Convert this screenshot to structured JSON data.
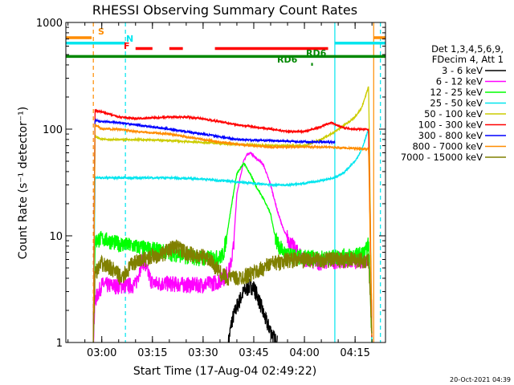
{
  "chart_data": {
    "type": "line",
    "title": "RHESSI Observing Summary Count Rates",
    "xlabel": "Start Time (17-Aug-04 02:49:22)",
    "ylabel": "Count Rate (s⁻¹ detector⁻¹)",
    "ylog": true,
    "ylim": [
      1,
      1000
    ],
    "xlim": [
      "02:49:22",
      "04:24:00"
    ],
    "x_ticks": [
      "03:00",
      "03:15",
      "03:30",
      "03:45",
      "04:00",
      "04:15"
    ],
    "y_ticks": [
      "1",
      "10",
      "100",
      "1000"
    ],
    "legend_header": [
      "Det 1,3,4,5,6,9,",
      "FDecim 4, Att 1"
    ],
    "legend_placement": "right",
    "footer": "20-Oct-2021 04:39",
    "grid": false,
    "flags": [
      {
        "label": "S",
        "color": "#ff8c00",
        "level": 720,
        "spans": [
          [
            "02:49:22",
            "02:57:00"
          ],
          [
            "04:20:30",
            "04:24:00"
          ]
        ]
      },
      {
        "label": "N",
        "color": "#00e5ee",
        "level": 640,
        "spans": [
          [
            "02:49:22",
            "03:07:00"
          ],
          [
            "04:09:00",
            "04:24:00"
          ]
        ]
      },
      {
        "label": "F",
        "color": "#ff0000",
        "level": 570,
        "spans": [
          [
            "03:10:00",
            "03:15:00"
          ],
          [
            "03:20:00",
            "03:24:00"
          ],
          [
            "03:33:30",
            "04:07:00"
          ]
        ]
      },
      {
        "label": "RD6",
        "color": "#008800",
        "level": 480,
        "spans": [
          [
            "02:49:22",
            "04:24:00"
          ]
        ]
      },
      {
        "label": "RD6",
        "color": "#008800",
        "level": 405,
        "spans": [
          [
            "04:02:00",
            "04:02:30"
          ]
        ]
      },
      {
        "label": "RD6",
        "color": "#008800",
        "level": 490,
        "spans": []
      }
    ],
    "vlines": [
      {
        "time": "02:57:30",
        "color": "#ff8c00",
        "style": "dashed"
      },
      {
        "time": "03:07:00",
        "color": "#00e5ee",
        "style": "dashed"
      },
      {
        "time": "04:09:00",
        "color": "#00e5ee",
        "style": "solid"
      },
      {
        "time": "04:20:30",
        "color": "#ff8c00",
        "style": "solid"
      },
      {
        "time": "04:22:30",
        "color": "#00e5ee",
        "style": "dashed"
      }
    ],
    "series": [
      {
        "name": "3 - 6 keV",
        "color": "#000000",
        "x": [
          "03:37:30",
          "03:38:30",
          "03:40",
          "03:42",
          "03:44",
          "03:45",
          "03:46",
          "03:47",
          "03:48",
          "03:49",
          "03:50",
          "03:51",
          "03:52"
        ],
        "y": [
          1.0,
          1.6,
          2.2,
          3.0,
          3.4,
          3.3,
          2.8,
          2.3,
          1.8,
          1.5,
          1.3,
          1.1,
          1.0
        ]
      },
      {
        "name": "6 - 12 keV",
        "color": "#ff00ff",
        "x": [
          "02:57:30",
          "02:58",
          "03:00",
          "03:05",
          "03:10",
          "03:12",
          "03:15",
          "03:20",
          "03:25",
          "03:30",
          "03:32",
          "03:34",
          "03:36",
          "03:38",
          "03:39",
          "03:40",
          "03:42",
          "03:43",
          "03:44",
          "03:45",
          "03:46",
          "03:47",
          "03:48",
          "03:50",
          "03:52",
          "03:54",
          "03:56",
          "03:58",
          "04:00",
          "04:02",
          "04:04",
          "04:06",
          "04:08",
          "04:10",
          "04:12",
          "04:14",
          "04:16",
          "04:18",
          "04:19"
        ],
        "y": [
          1.0,
          2.5,
          3.5,
          3.4,
          3.5,
          6.0,
          3.6,
          3.6,
          3.5,
          3.5,
          3.6,
          3.7,
          4.0,
          5.0,
          8.0,
          25,
          50,
          58,
          60,
          56,
          52,
          50,
          45,
          30,
          17,
          11,
          8.5,
          7.0,
          6.2,
          5.8,
          5.7,
          5.7,
          5.8,
          6.0,
          6.0,
          5.9,
          5.9,
          6.0,
          6.5
        ]
      },
      {
        "name": "12 - 25 keV",
        "color": "#00ff00",
        "x": [
          "02:57:30",
          "02:58",
          "03:00",
          "03:05",
          "03:10",
          "03:15",
          "03:20",
          "03:25",
          "03:30",
          "03:35",
          "03:36",
          "03:37",
          "03:38",
          "03:39",
          "03:40",
          "03:42",
          "03:44",
          "03:46",
          "03:48",
          "03:50",
          "03:51",
          "03:52",
          "03:54",
          "03:56",
          "03:58",
          "04:00",
          "04:02",
          "04:04",
          "04:06",
          "04:08",
          "04:10",
          "04:12",
          "04:14",
          "04:16",
          "04:18",
          "04:19",
          "04:20"
        ],
        "y": [
          1.0,
          9.0,
          9.5,
          8.5,
          8.0,
          7.5,
          7.0,
          6.5,
          6.2,
          6.3,
          6.8,
          10,
          16,
          25,
          38,
          48,
          38,
          28,
          22,
          16,
          11,
          8.5,
          7.0,
          6.5,
          6.4,
          6.3,
          6.3,
          6.2,
          6.2,
          6.3,
          6.4,
          6.5,
          6.6,
          6.7,
          7.0,
          8.5,
          1.0
        ]
      },
      {
        "name": "25 - 50 keV",
        "color": "#00e5ee",
        "x": [
          "02:57:30",
          "02:58",
          "03:00",
          "03:10",
          "03:20",
          "03:30",
          "03:40",
          "03:45",
          "03:50",
          "03:55",
          "04:00",
          "04:05",
          "04:09",
          "04:12",
          "04:15",
          "04:17",
          "04:19",
          "04:20"
        ],
        "y": [
          1.0,
          35,
          35,
          35,
          35,
          34,
          32,
          31,
          30,
          30,
          31,
          33,
          35,
          40,
          50,
          65,
          100,
          1.0
        ]
      },
      {
        "name": "50 - 100 keV",
        "color": "#cccc00",
        "x": [
          "02:57:30",
          "02:58",
          "03:00",
          "03:10",
          "03:20",
          "03:30",
          "03:40",
          "03:50",
          "04:00",
          "04:05",
          "04:09",
          "04:12",
          "04:15",
          "04:17",
          "04:19",
          "04:20"
        ],
        "y": [
          1.0,
          85,
          80,
          80,
          78,
          75,
          72,
          70,
          70,
          80,
          95,
          110,
          130,
          160,
          250,
          1.0
        ]
      },
      {
        "name": "100 - 300 keV",
        "color": "#ff0000",
        "x": [
          "02:57:30",
          "02:58",
          "03:00",
          "03:05",
          "03:10",
          "03:20",
          "03:25",
          "03:30",
          "03:40",
          "03:45",
          "03:50",
          "03:55",
          "04:00",
          "04:05",
          "04:06",
          "04:08",
          "04:10",
          "04:12",
          "04:15",
          "04:17",
          "04:19",
          "04:20"
        ],
        "y": [
          1.0,
          150,
          145,
          130,
          125,
          130,
          130,
          125,
          110,
          105,
          100,
          95,
          95,
          105,
          110,
          115,
          108,
          102,
          100,
          100,
          100,
          1.0
        ]
      },
      {
        "name": "300 - 800 keV",
        "color": "#0000ff",
        "x": [
          "02:57:30",
          "02:58",
          "03:00",
          "03:05",
          "03:10",
          "03:20",
          "03:30",
          "03:40",
          "03:50",
          "04:00",
          "04:05",
          "04:09"
        ],
        "y": [
          1.0,
          120,
          118,
          115,
          110,
          100,
          90,
          80,
          78,
          76,
          76,
          75
        ]
      },
      {
        "name": "800 - 7000 keV",
        "color": "#ff8c00",
        "x": [
          "02:57:30",
          "02:58",
          "03:00",
          "03:05",
          "03:10",
          "03:20",
          "03:30",
          "03:40",
          "03:50",
          "04:00",
          "04:05",
          "04:10",
          "04:15",
          "04:17",
          "04:19",
          "04:20"
        ],
        "y": [
          1.0,
          110,
          100,
          100,
          95,
          90,
          80,
          72,
          68,
          68,
          68,
          67,
          66,
          65,
          65,
          1.0
        ]
      },
      {
        "name": "7000 - 15000 keV",
        "color": "#808000",
        "x": [
          "02:57:30",
          "02:58",
          "03:00",
          "03:03",
          "03:06",
          "03:09",
          "03:12",
          "03:15",
          "03:18",
          "03:20",
          "03:22",
          "03:25",
          "03:28",
          "03:30",
          "03:33",
          "03:36",
          "03:40",
          "03:45",
          "03:50",
          "03:55",
          "04:00",
          "04:05",
          "04:10",
          "04:15",
          "04:19",
          "04:20"
        ],
        "y": [
          1.0,
          4.5,
          5.5,
          5.0,
          4.0,
          5.5,
          6.0,
          6.5,
          6.8,
          7.5,
          8.0,
          7.0,
          6.5,
          6.5,
          5.5,
          4.2,
          4.0,
          4.5,
          5.5,
          6.0,
          6.0,
          6.0,
          6.0,
          6.0,
          6.0,
          1.0
        ]
      }
    ]
  }
}
